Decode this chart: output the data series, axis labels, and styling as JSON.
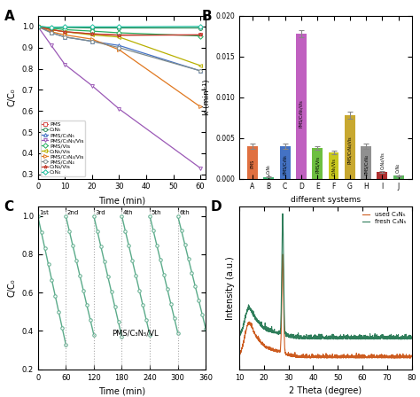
{
  "panel_A": {
    "title": "A",
    "xlabel": "Time (min)",
    "ylabel": "C/C₀",
    "xlim": [
      0,
      62
    ],
    "ylim": [
      0.28,
      1.05
    ],
    "yticks": [
      0.3,
      0.4,
      0.5,
      0.6,
      0.7,
      0.8,
      0.9,
      1.0
    ],
    "xticks": [
      0,
      10,
      20,
      30,
      40,
      50,
      60
    ],
    "series": [
      {
        "label": "PMS",
        "color": "#d9534f",
        "marker": "s",
        "data_x": [
          0,
          5,
          10,
          20,
          30,
          60
        ],
        "data_y": [
          1.0,
          0.985,
          0.975,
          0.965,
          0.96,
          0.96
        ]
      },
      {
        "label": "C₃N₅",
        "color": "#2e8b57",
        "marker": "o",
        "data_x": [
          0,
          5,
          10,
          20,
          30,
          60
        ],
        "data_y": [
          1.0,
          0.995,
          0.995,
          0.993,
          0.993,
          0.993
        ]
      },
      {
        "label": "PMS/C₃N₅",
        "color": "#4472c4",
        "marker": "^",
        "data_x": [
          0,
          5,
          10,
          20,
          30,
          60
        ],
        "data_y": [
          1.0,
          0.97,
          0.95,
          0.93,
          0.91,
          0.79
        ]
      },
      {
        "label": "PMS/C₃N₅/Vis",
        "color": "#9b59b6",
        "marker": "v",
        "data_x": [
          0,
          5,
          10,
          20,
          30,
          60
        ],
        "data_y": [
          1.0,
          0.91,
          0.82,
          0.72,
          0.61,
          0.33
        ]
      },
      {
        "label": "PMS/Vis",
        "color": "#27ae60",
        "marker": "D",
        "data_x": [
          0,
          5,
          10,
          20,
          30,
          60
        ],
        "data_y": [
          1.0,
          0.992,
          0.985,
          0.978,
          0.97,
          0.955
        ]
      },
      {
        "label": "C₃N₅/Vis",
        "color": "#b8b000",
        "marker": "<",
        "data_x": [
          0,
          5,
          10,
          20,
          30,
          60
        ],
        "data_y": [
          1.0,
          0.985,
          0.975,
          0.96,
          0.95,
          0.815
        ]
      },
      {
        "label": "PMS/C₃N₄/Vis",
        "color": "#e07820",
        "marker": ">",
        "data_x": [
          0,
          5,
          10,
          20,
          30,
          60
        ],
        "data_y": [
          1.0,
          0.975,
          0.96,
          0.94,
          0.89,
          0.62
        ]
      },
      {
        "label": "PMS/C₃N₄",
        "color": "#7f8c8d",
        "marker": "o",
        "data_x": [
          0,
          5,
          10,
          20,
          30,
          60
        ],
        "data_y": [
          1.0,
          0.97,
          0.95,
          0.93,
          0.9,
          0.79
        ]
      },
      {
        "label": "C₃N₄/Vis",
        "color": "#c0392b",
        "marker": "*",
        "data_x": [
          0,
          5,
          10,
          20,
          30,
          60
        ],
        "data_y": [
          1.0,
          0.985,
          0.975,
          0.965,
          0.958,
          0.96
        ]
      },
      {
        "label": "C₃N₄",
        "color": "#1abc9c",
        "marker": "D",
        "data_x": [
          0,
          5,
          10,
          20,
          30,
          60
        ],
        "data_y": [
          1.0,
          0.995,
          0.998,
          0.998,
          0.998,
          1.0
        ]
      }
    ]
  },
  "panel_B": {
    "title": "B",
    "xlabel": "different systems",
    "ylabel": "k (min⁻¹)",
    "ylim": [
      0,
      0.02
    ],
    "yticks": [
      0.0,
      0.005,
      0.01,
      0.015,
      0.02
    ],
    "categories": [
      "A",
      "B",
      "C",
      "D",
      "E",
      "F",
      "G",
      "H",
      "I",
      "J"
    ],
    "labels": [
      "PMS",
      "C₃N₅",
      "PMS/C₃N₅",
      "PMS/C₃N₅/Vis",
      "PMS/Vis",
      "C₃N₅/Vis",
      "PMS/C₃N₄/Vis",
      "PMS/C₃N₄",
      "C₃N₄/Vis",
      "C₃N₄"
    ],
    "values": [
      0.004,
      0.00018,
      0.004,
      0.0178,
      0.0038,
      0.0032,
      0.0078,
      0.004,
      0.0008,
      0.00035
    ],
    "errors": [
      0.0003,
      5e-05,
      0.0003,
      0.0004,
      0.0002,
      0.0002,
      0.0004,
      0.0003,
      0.0001,
      5e-05
    ],
    "colors": [
      "#e07040",
      "#3cb371",
      "#4472c4",
      "#c060c0",
      "#6dbf40",
      "#c8c820",
      "#c8a830",
      "#909090",
      "#b03030",
      "#5cb85c"
    ]
  },
  "panel_C": {
    "title": "C",
    "xlabel": "Time (min)",
    "ylabel": "C/C₀",
    "xlim": [
      0,
      360
    ],
    "ylim": [
      0.2,
      1.05
    ],
    "yticks": [
      0.2,
      0.4,
      0.6,
      0.8,
      1.0
    ],
    "xticks": [
      0,
      60,
      120,
      180,
      240,
      300,
      360
    ],
    "annotation": "PMS/C₃N₅/VL",
    "cycle_labels": [
      "1st",
      "2nd",
      "3rd",
      "4th",
      "5th",
      "6th"
    ],
    "color": "#5bab8a",
    "cycle_starts": [
      0,
      60,
      120,
      180,
      240,
      300
    ],
    "cycle_end_y": [
      0.33,
      0.38,
      0.37,
      0.38,
      0.39,
      0.41
    ]
  },
  "panel_D": {
    "title": "D",
    "xlabel": "2 Theta (degree)",
    "ylabel": "Intensity (a.u.)",
    "xlim": [
      10,
      80
    ],
    "xticks": [
      10,
      20,
      30,
      40,
      50,
      60,
      70,
      80
    ],
    "used_color": "#cd5c20",
    "fresh_color": "#2e7d5a",
    "used_label": "used C₃N₅",
    "fresh_label": "fresh C₃N₅"
  }
}
